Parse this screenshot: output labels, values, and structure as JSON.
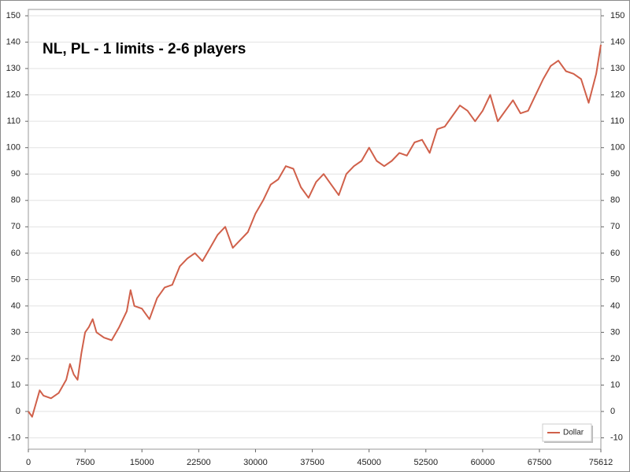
{
  "chart_data": {
    "type": "line",
    "title": "NL, PL  - 1 limits  - 2-6 players",
    "x": [
      0,
      500,
      1000,
      1500,
      2000,
      3000,
      4000,
      5000,
      5500,
      6000,
      6500,
      7000,
      7500,
      8000,
      8500,
      9000,
      10000,
      11000,
      12000,
      13000,
      13500,
      14000,
      15000,
      16000,
      17000,
      18000,
      19000,
      20000,
      21000,
      22000,
      23000,
      24000,
      25000,
      26000,
      27000,
      28000,
      29000,
      30000,
      31000,
      32000,
      33000,
      34000,
      35000,
      36000,
      37000,
      38000,
      39000,
      40000,
      41000,
      42000,
      43000,
      44000,
      45000,
      46000,
      47000,
      48000,
      49000,
      50000,
      51000,
      52000,
      53000,
      54000,
      55000,
      56000,
      57000,
      58000,
      59000,
      60000,
      61000,
      62000,
      63000,
      64000,
      65000,
      66000,
      67000,
      68000,
      69000,
      70000,
      71000,
      72000,
      73000,
      74000,
      75000,
      75612
    ],
    "series": [
      {
        "name": "Dollar",
        "color": "#d0604a",
        "values": [
          0,
          -2,
          3,
          8,
          6,
          5,
          7,
          12,
          18,
          14,
          12,
          22,
          30,
          32,
          35,
          30,
          28,
          27,
          32,
          38,
          46,
          40,
          39,
          35,
          43,
          47,
          48,
          55,
          58,
          60,
          57,
          62,
          67,
          70,
          62,
          65,
          68,
          75,
          80,
          86,
          88,
          93,
          92,
          85,
          81,
          87,
          90,
          86,
          82,
          90,
          93,
          95,
          100,
          95,
          93,
          95,
          98,
          97,
          102,
          103,
          98,
          107,
          108,
          112,
          116,
          114,
          110,
          114,
          120,
          110,
          114,
          118,
          113,
          114,
          120,
          126,
          131,
          133,
          129,
          128,
          126,
          117,
          128,
          139
        ]
      }
    ],
    "xlim": [
      0,
      75612
    ],
    "xticks": [
      0,
      7500,
      15000,
      22500,
      30000,
      37500,
      45000,
      52500,
      60000,
      67500,
      75612
    ],
    "ylim": [
      -14.3,
      152.4
    ],
    "yticks": [
      -10,
      0,
      10,
      20,
      30,
      40,
      50,
      60,
      70,
      80,
      90,
      100,
      110,
      120,
      130,
      140,
      150
    ],
    "grid": true,
    "legend": "lower right"
  }
}
